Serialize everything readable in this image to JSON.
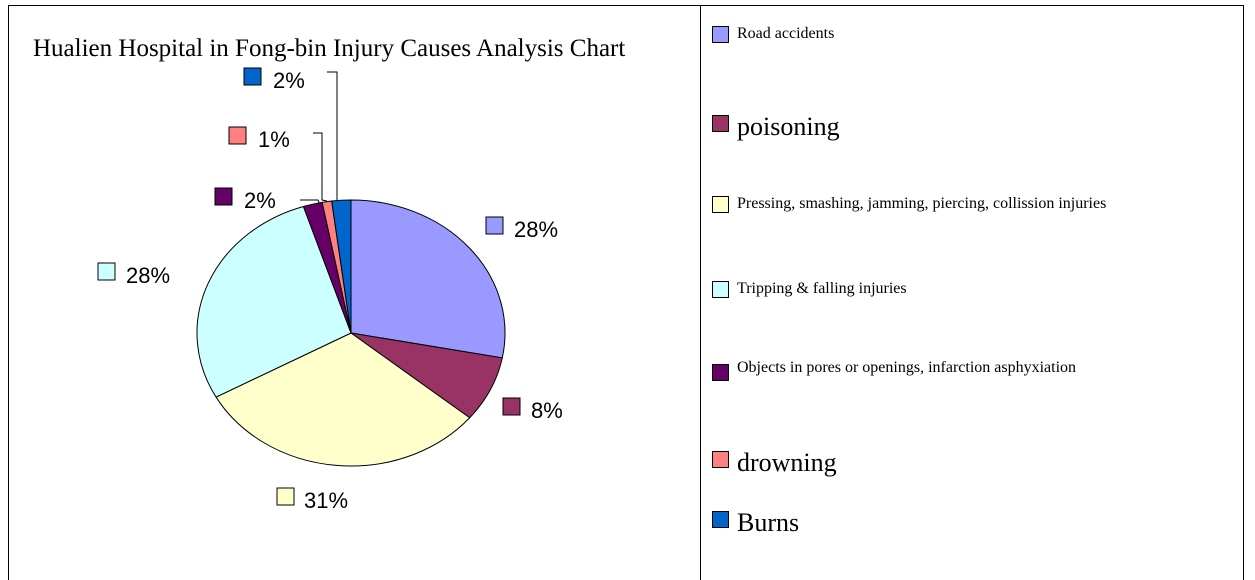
{
  "chart_data": {
    "type": "pie",
    "title": "Hualien Hospital in Fong-bin Injury Causes Analysis Chart",
    "categories": [
      "Road accidents",
      "poisoning",
      "Pressing, smashing,  jamming,  piercing, collission injuries",
      "Tripping & falling injuries",
      "Objects in pores or openings,  infarction asphyxiation",
      "drowning",
      "Burns"
    ],
    "values": [
      28,
      8,
      31,
      28,
      2,
      1,
      2
    ],
    "value_labels": [
      "28%",
      "8%",
      "31%",
      "28%",
      "2%",
      "1%",
      "2%"
    ],
    "colors": [
      "#9999ff",
      "#993366",
      "#ffffcc",
      "#ccffff",
      "#660066",
      "#ff8080",
      "#0066cc"
    ],
    "legend": "right"
  }
}
